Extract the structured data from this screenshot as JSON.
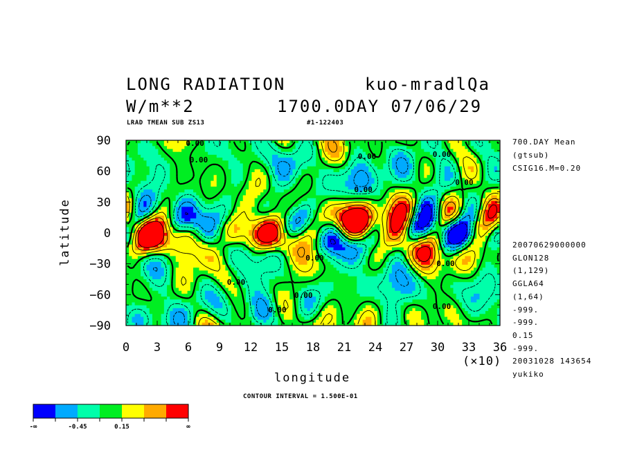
{
  "header": {
    "title_left": "LONG RADIATION",
    "title_right": "kuo-mradlQa",
    "units": "W/m**2",
    "time": "1700.0DAY 07/06/29",
    "sub_left": "LRAD TMEAN SUB ZS13",
    "sub_right": "#1-122403"
  },
  "side_info_top": [
    "700.DAY Mean",
    "(gtsub)",
    "CSIG16.M=0.20"
  ],
  "side_info_bottom": [
    "20070629000000",
    "GLON128",
    "(1,129)",
    "GGLA64",
    "(1,64)",
    "-999.",
    "-999.",
    "0.15",
    "-999.",
    "20031028 143654",
    "yukiko"
  ],
  "contour_interval": "CONTOUR INTERVAL = 1.500E-01",
  "colorbar": {
    "colors": [
      "#0000ff",
      "#00aaff",
      "#00ffaa",
      "#00ee22",
      "#ffff00",
      "#ffaa00",
      "#ff0000"
    ],
    "labels": [
      "-∞",
      "-0.45",
      "0.15",
      "∞"
    ]
  },
  "chart_data": {
    "type": "heatmap",
    "title": "LONG RADIATION",
    "xlabel": "longitude",
    "ylabel": "latitude",
    "x_multiplier": "(×10)",
    "xlim": [
      0,
      36
    ],
    "ylim": [
      -90,
      90
    ],
    "x_ticks": [
      "0",
      "3",
      "6",
      "9",
      "12",
      "15",
      "18",
      "21",
      "24",
      "27",
      "30",
      "33",
      "36"
    ],
    "y_ticks": [
      "90",
      "60",
      "30",
      "0",
      "−30",
      "−60",
      "−90"
    ],
    "contour_labels": [
      "0.00",
      "0.00",
      "0.00",
      "0.00",
      "0.00",
      "0.00",
      "0.00",
      "0.00",
      "0.00",
      "0.00",
      "0.00",
      "0.00"
    ]
  }
}
